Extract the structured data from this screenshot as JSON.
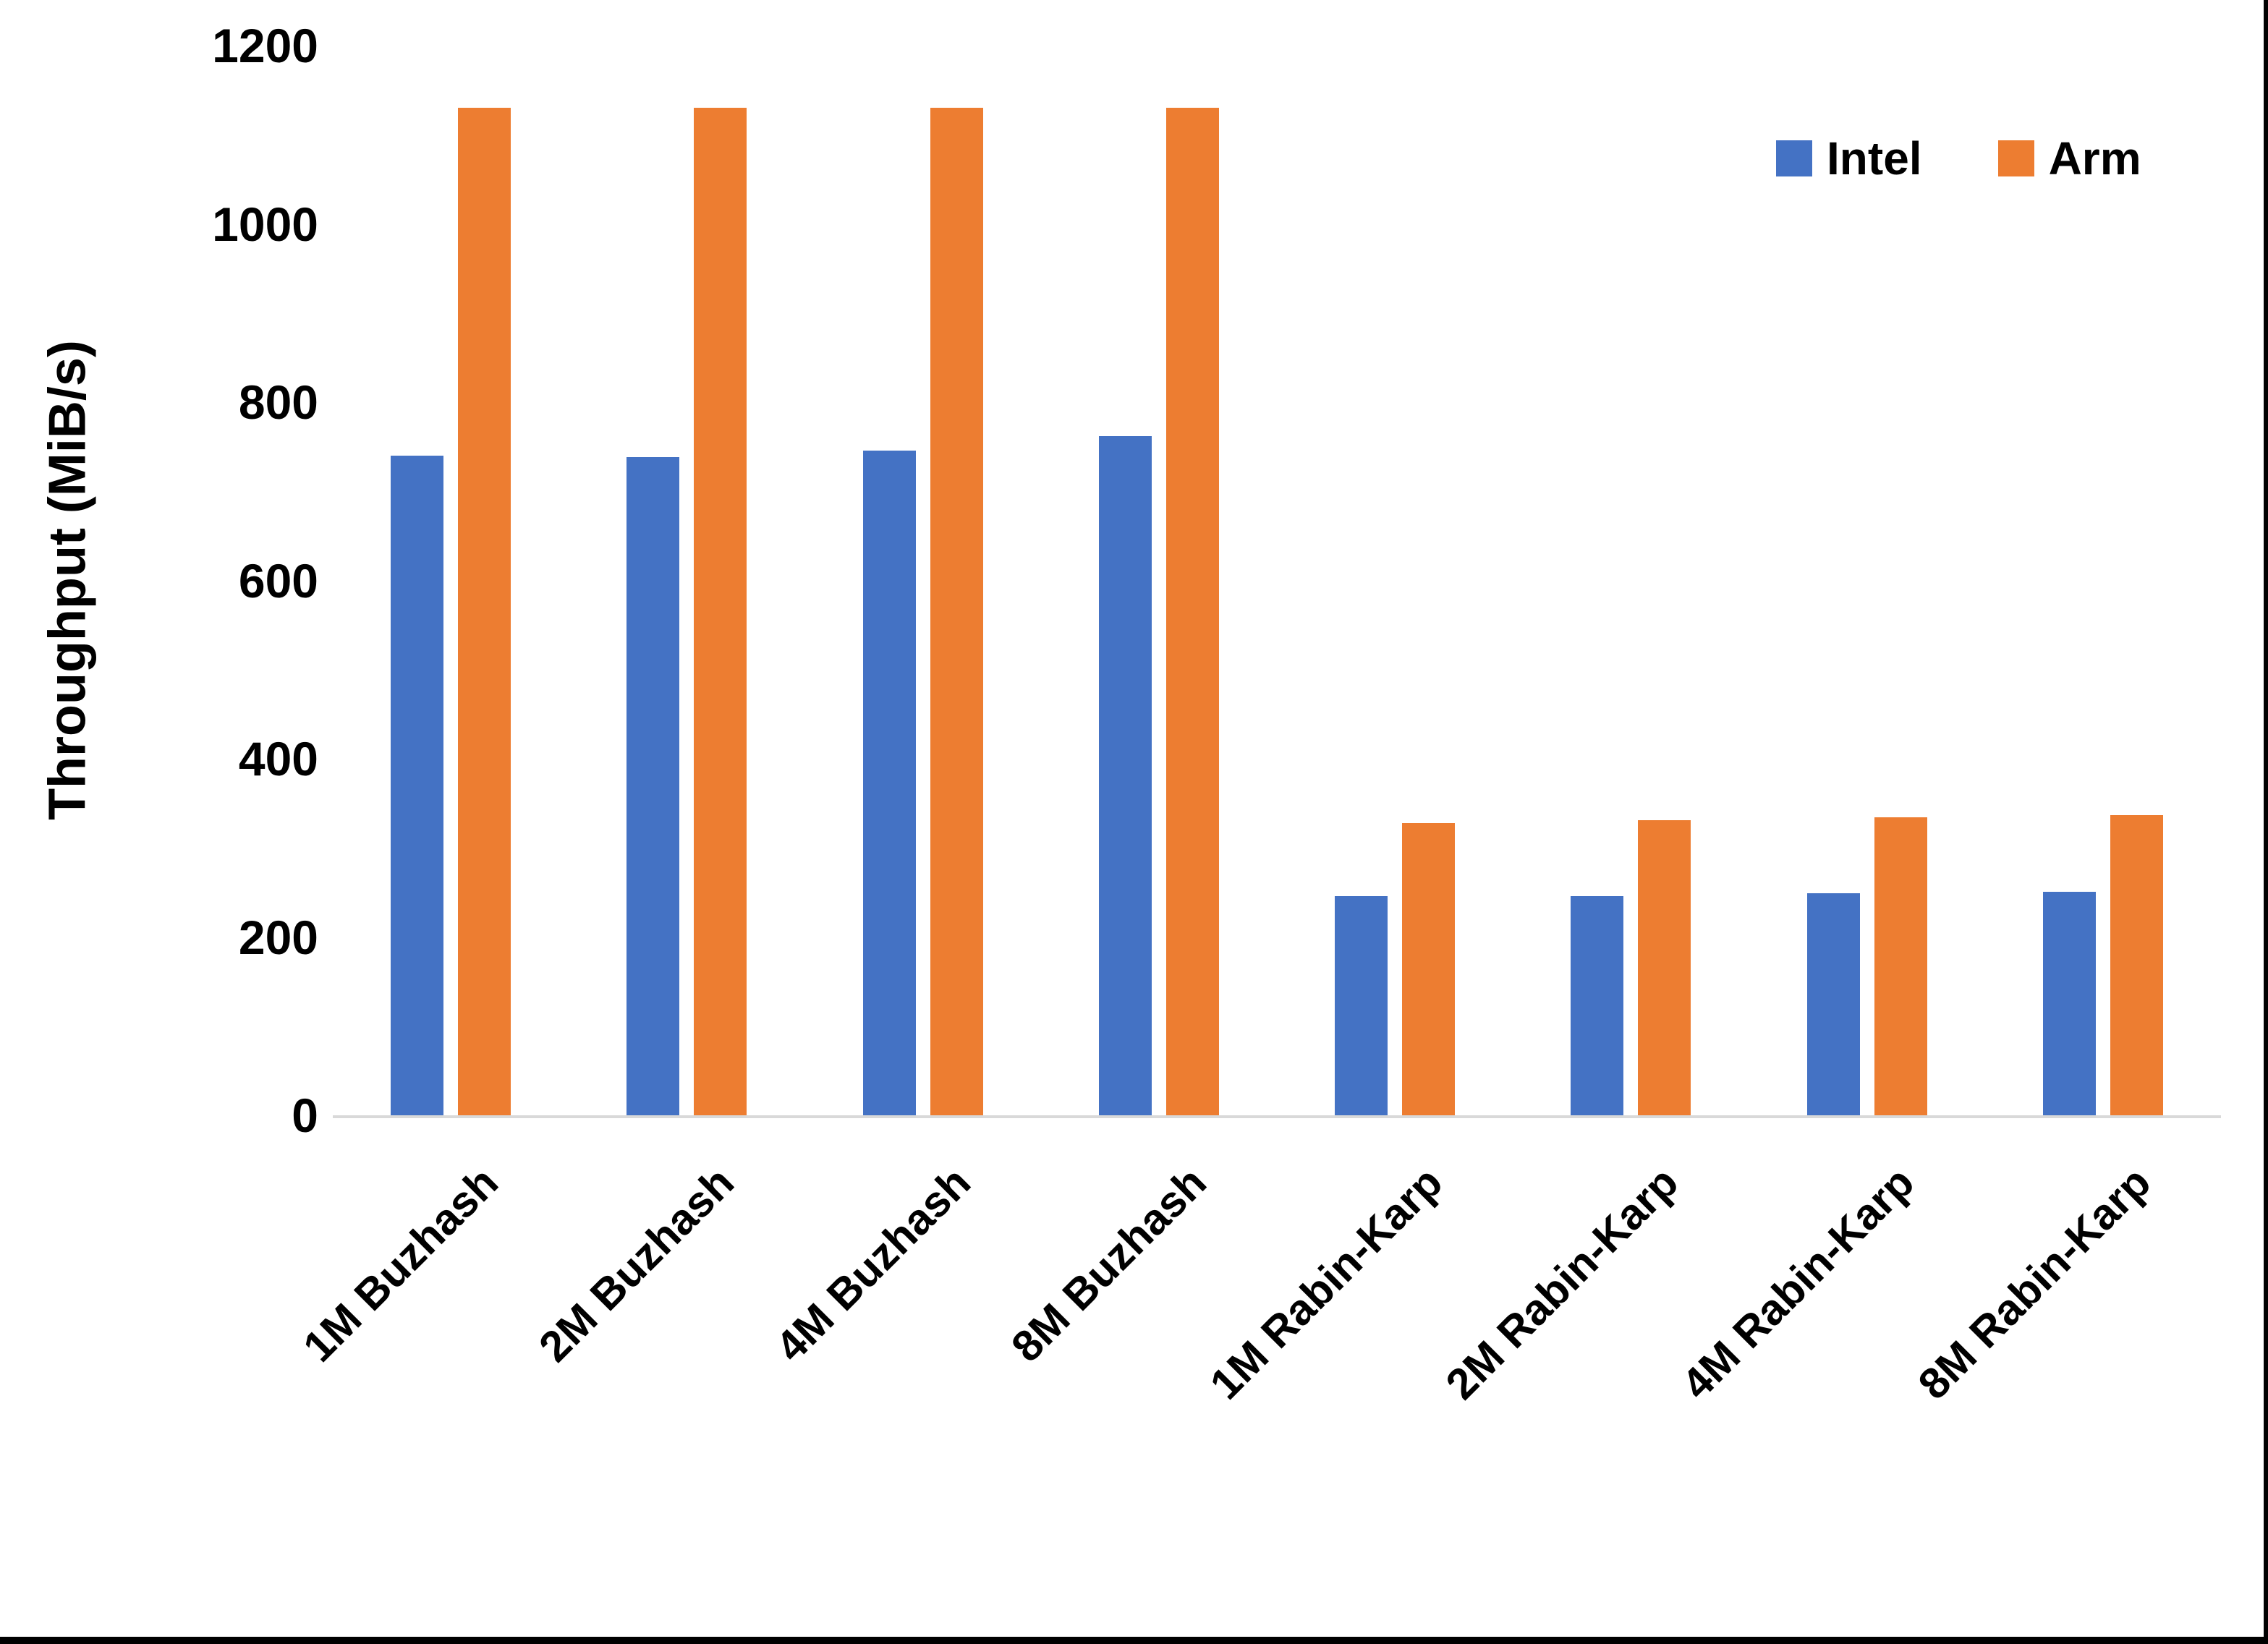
{
  "chart_data": {
    "type": "bar",
    "title": "",
    "xlabel": "",
    "ylabel": "Throughput (MiB/s)",
    "ylim": [
      0,
      1200
    ],
    "yticks": [
      0,
      200,
      400,
      600,
      800,
      1000,
      1200
    ],
    "grid": false,
    "legend_position": "top-right",
    "categories": [
      "1M Buzhash",
      "2M Buzhash",
      "4M Buzhash",
      "8M Buzhash",
      "1M Rabin-Karp",
      "2M Rabin-Karp",
      "4M Rabin-Karp",
      "8M Rabin-Karp"
    ],
    "series": [
      {
        "name": "Intel",
        "color": "#4472C4",
        "values": [
          740,
          738,
          746,
          762,
          246,
          246,
          249,
          251
        ]
      },
      {
        "name": "Arm",
        "color": "#ED7D31",
        "values": [
          1130,
          1130,
          1130,
          1130,
          328,
          331,
          334,
          337
        ]
      }
    ],
    "axis_line_color": "#D9D9D9",
    "text_color": "#000000",
    "screenshot_border_color": "#000000"
  }
}
